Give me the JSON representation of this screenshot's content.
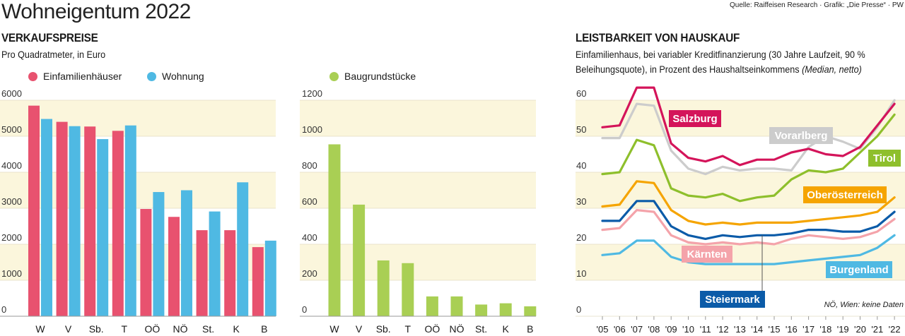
{
  "header": {
    "title": "Wohneigentum 2022",
    "source": "Quelle: Raiffeisen Research · Grafik: „Die Presse“ · PW"
  },
  "prices": {
    "section_title": "VERKAUFSPREISE",
    "subtitle": "Pro Quadratmeter, in Euro",
    "legend": [
      {
        "label": "Einfamilienhäuser",
        "color": "#e8526f"
      },
      {
        "label": "Wohnung",
        "color": "#4fb9e3"
      }
    ],
    "legend_land": {
      "label": "Baugrundstücke",
      "color": "#a9cf54"
    }
  },
  "afford": {
    "section_title": "LEISTBARKEIT VON HAUSKAUF",
    "subtitle_line1": "Einfamilienhaus, bei variabler Kreditfinanzierung (30 Jahre Laufzeit, 90 %",
    "subtitle_line2": "Beleihungsquote), in Prozent des Haushaltseinkommens ",
    "subtitle_italic": "(Median, netto)",
    "note": "NÖ, Wien: keine Daten"
  },
  "chart_data": [
    {
      "type": "bar",
      "categories": [
        "W",
        "V",
        "Sb.",
        "T",
        "OÖ",
        "NÖ",
        "St.",
        "K",
        "B"
      ],
      "series": [
        {
          "name": "Einfamilienhäuser",
          "color": "#e8526f",
          "values": [
            5850,
            5400,
            5270,
            5150,
            2980,
            2760,
            2390,
            2390,
            1920
          ]
        },
        {
          "name": "Wohnung",
          "color": "#4fb9e3",
          "values": [
            5480,
            5280,
            4920,
            5300,
            3450,
            3500,
            2910,
            3720,
            2100
          ]
        }
      ],
      "ylim": [
        0,
        6000
      ],
      "yticks": [
        0,
        1000,
        2000,
        3000,
        4000,
        5000,
        6000
      ]
    },
    {
      "type": "bar",
      "categories": [
        "W",
        "V",
        "Sb.",
        "T",
        "OÖ",
        "NÖ",
        "St.",
        "K",
        "B"
      ],
      "series": [
        {
          "name": "Baugrundstücke",
          "color": "#a9cf54",
          "values": [
            955,
            620,
            310,
            295,
            110,
            110,
            65,
            72,
            55
          ]
        }
      ],
      "ylim": [
        0,
        1200
      ],
      "yticks": [
        0,
        200,
        400,
        600,
        800,
        1000,
        1200
      ]
    },
    {
      "type": "line",
      "x": [
        "'05",
        "'06",
        "'07",
        "'08",
        "'09",
        "'10",
        "'11",
        "'12",
        "'13",
        "'14",
        "'15",
        "'16",
        "'17",
        "'18",
        "'19",
        "'20",
        "'21",
        "'22"
      ],
      "ylim": [
        0,
        60
      ],
      "yticks": [
        0,
        10,
        20,
        30,
        40,
        50,
        60
      ],
      "series": [
        {
          "name": "Salzburg",
          "color": "#d4145a",
          "label_style": "box",
          "values": [
            52.5,
            53,
            63.5,
            63.5,
            48,
            44,
            43,
            44.5,
            42,
            43.5,
            43.5,
            45.5,
            46.5,
            45,
            44.5,
            47,
            53,
            59
          ]
        },
        {
          "name": "Vorarlberg",
          "color": "#cccccc",
          "label_style": "box",
          "values": [
            49.5,
            49.5,
            59,
            58.5,
            46,
            41,
            39.5,
            41.5,
            40.5,
            41,
            41,
            40.5,
            47,
            50,
            48.5,
            46.5,
            52.5,
            60
          ]
        },
        {
          "name": "Tirol",
          "color": "#8ebf2c",
          "label_style": "box",
          "values": [
            39.5,
            40,
            49,
            47.5,
            35.5,
            33.5,
            33,
            34,
            32,
            33,
            33.5,
            38,
            40.5,
            40,
            41,
            45.5,
            50,
            56
          ]
        },
        {
          "name": "Oberösterreich",
          "color": "#f5a400",
          "label_style": "box",
          "values": [
            30.5,
            31,
            37.5,
            37,
            29.5,
            26.5,
            25.5,
            26,
            25.5,
            26,
            26,
            26,
            26.5,
            27,
            27.5,
            28,
            29,
            33
          ]
        },
        {
          "name": "Steiermark",
          "color": "#0b5ba8",
          "label_style": "box",
          "values": [
            26.5,
            26.5,
            32,
            32,
            25,
            22.5,
            21.5,
            22.5,
            22,
            22.5,
            22.5,
            23,
            24,
            24,
            23.5,
            23.5,
            25,
            29
          ]
        },
        {
          "name": "Kärnten",
          "color": "#f4a3aa",
          "label_style": "box",
          "values": [
            24,
            24.5,
            29.5,
            29,
            22.5,
            20.5,
            20,
            20.5,
            20,
            20.5,
            20,
            21.5,
            22.5,
            22,
            21.5,
            22,
            23.5,
            27
          ]
        },
        {
          "name": "Burgenland",
          "color": "#4fb9e3",
          "label_style": "box",
          "values": [
            17,
            17.5,
            21,
            21,
            16.5,
            15,
            14.5,
            14.5,
            14.5,
            14.5,
            14.5,
            15,
            15.5,
            16,
            16.5,
            17,
            19,
            22.5
          ]
        }
      ]
    }
  ]
}
